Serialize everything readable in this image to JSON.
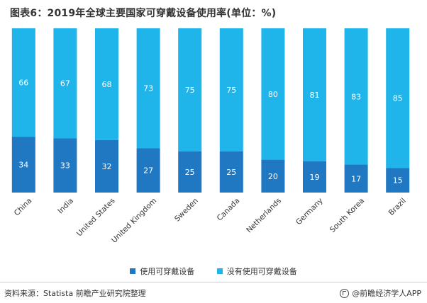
{
  "title": "图表6：2019年全球主要国家可穿戴设备使用率(单位：%)",
  "chart_data": {
    "type": "bar",
    "stacked": true,
    "percent_stacked": true,
    "categories": [
      "China",
      "India",
      "United States",
      "United Kingdom",
      "Sweden",
      "Canada",
      "Netherlands",
      "Germany",
      "South Korea",
      "Brazil"
    ],
    "series": [
      {
        "name": "使用可穿戴设备",
        "color": "#1f78c1",
        "values": [
          34,
          33,
          32,
          27,
          25,
          25,
          20,
          19,
          17,
          15
        ]
      },
      {
        "name": "没有使用可穿戴设备",
        "color": "#1fb4ea",
        "values": [
          66,
          67,
          68,
          73,
          75,
          75,
          80,
          81,
          83,
          85
        ]
      }
    ],
    "ylim": [
      0,
      100
    ],
    "legend_position": "bottom",
    "grid": false,
    "xlabel": "",
    "ylabel": ""
  },
  "legend": {
    "items": [
      {
        "label": "使用可穿戴设备",
        "color": "#1f78c1"
      },
      {
        "label": "没有使用可穿戴设备",
        "color": "#1fb4ea"
      }
    ]
  },
  "footer": {
    "source": "资料来源：Statista 前瞻产业研究院整理",
    "brand": "@前瞻经济学人APP"
  }
}
